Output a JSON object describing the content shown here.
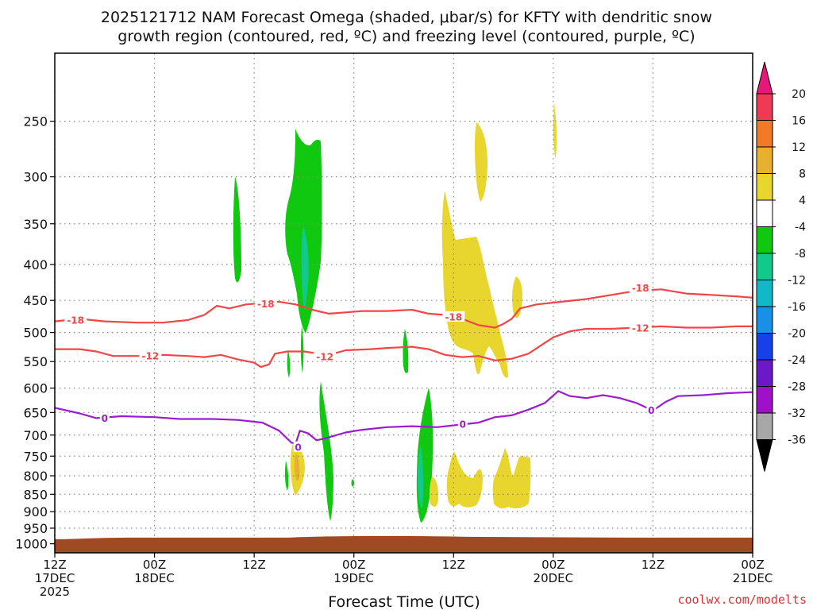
{
  "title_line1": "2025121712 NAM Forecast Omega (shaded, μbar/s) for KFTY with dendritic snow",
  "title_line2": "growth region (contoured, red, ºC) and freezing level (contoured, purple, ºC)",
  "credit": "coolwx.com/modelts",
  "chart_data": {
    "type": "time-height cross-section",
    "xlabel": "Forecast Time (UTC)",
    "ylabel": "",
    "x_ticks": [
      {
        "hour": 0,
        "lines": [
          "12Z",
          "17DEC",
          "2025"
        ]
      },
      {
        "hour": 12,
        "lines": [
          "00Z",
          "18DEC"
        ]
      },
      {
        "hour": 24,
        "lines": [
          "12Z"
        ]
      },
      {
        "hour": 36,
        "lines": [
          "00Z",
          "19DEC"
        ]
      },
      {
        "hour": 48,
        "lines": [
          "12Z"
        ]
      },
      {
        "hour": 60,
        "lines": [
          "00Z",
          "20DEC"
        ]
      },
      {
        "hour": 72,
        "lines": [
          "12Z"
        ]
      },
      {
        "hour": 84,
        "lines": [
          "00Z",
          "21DEC"
        ]
      }
    ],
    "x_range_hours": [
      0,
      84
    ],
    "y_ticks": [
      250,
      300,
      350,
      400,
      450,
      500,
      550,
      600,
      650,
      700,
      750,
      800,
      850,
      900,
      950,
      1000
    ],
    "y_range_hpa": [
      200,
      1030
    ],
    "y_scale": "log-pressure",
    "grid": true,
    "ground_surface_hpa": 980,
    "colorbar": {
      "labels": [
        "20",
        "16",
        "12",
        "8",
        "4",
        "-4",
        "-8",
        "-12",
        "-16",
        "-20",
        "-24",
        "-28",
        "-32",
        "-36"
      ],
      "colors": [
        "#ee3a52",
        "#f07a28",
        "#e8b030",
        "#e8d62e",
        "#ffffff",
        "#10c810",
        "#12c88a",
        "#10b8c8",
        "#1890e8",
        "#1840e8",
        "#6a18c8",
        "#a010c8",
        "#a8a8a8"
      ],
      "top_arrow_color": "#e8187a",
      "bottom_arrow_color": "#000000"
    },
    "contours": [
      {
        "label": "-18",
        "color": "#f04646",
        "label_positions": [
          [
            2.5,
            480
          ],
          [
            25.4,
            455
          ],
          [
            48.0,
            475
          ],
          [
            70.5,
            432
          ]
        ],
        "points": [
          [
            0,
            482
          ],
          [
            3,
            478
          ],
          [
            6,
            482
          ],
          [
            10,
            484
          ],
          [
            13,
            484
          ],
          [
            16,
            480
          ],
          [
            18,
            472
          ],
          [
            19.5,
            458
          ],
          [
            21,
            462
          ],
          [
            23,
            456
          ],
          [
            25,
            454
          ],
          [
            27,
            452
          ],
          [
            29,
            456
          ],
          [
            31,
            464
          ],
          [
            33,
            470
          ],
          [
            35,
            468
          ],
          [
            37,
            466
          ],
          [
            40,
            466
          ],
          [
            43,
            464
          ],
          [
            45,
            470
          ],
          [
            47,
            472
          ],
          [
            49,
            478
          ],
          [
            51,
            488
          ],
          [
            53,
            492
          ],
          [
            54,
            486
          ],
          [
            55,
            478
          ],
          [
            56,
            462
          ],
          [
            58,
            456
          ],
          [
            61,
            452
          ],
          [
            64,
            448
          ],
          [
            67,
            442
          ],
          [
            70,
            436
          ],
          [
            73,
            434
          ],
          [
            76,
            440
          ],
          [
            79,
            442
          ],
          [
            82,
            444
          ],
          [
            84,
            446
          ]
        ]
      },
      {
        "label": "-12",
        "color": "#f04646",
        "label_positions": [
          [
            11.5,
            540
          ],
          [
            32.5,
            541
          ],
          [
            70.5,
            493
          ]
        ],
        "points": [
          [
            0,
            528
          ],
          [
            3,
            528
          ],
          [
            5,
            532
          ],
          [
            7,
            540
          ],
          [
            10,
            540
          ],
          [
            13,
            538
          ],
          [
            16,
            540
          ],
          [
            18,
            542
          ],
          [
            20,
            538
          ],
          [
            22,
            546
          ],
          [
            24,
            552
          ],
          [
            24.8,
            560
          ],
          [
            25.8,
            555
          ],
          [
            26.5,
            536
          ],
          [
            28,
            532
          ],
          [
            30,
            532
          ],
          [
            31.8,
            536
          ],
          [
            32.5,
            540
          ],
          [
            33.3,
            537
          ],
          [
            35,
            530
          ],
          [
            38,
            528
          ],
          [
            40,
            526
          ],
          [
            43,
            524
          ],
          [
            45,
            528
          ],
          [
            47,
            538
          ],
          [
            49,
            542
          ],
          [
            51,
            540
          ],
          [
            53,
            548
          ],
          [
            55,
            545
          ],
          [
            57,
            536
          ],
          [
            60,
            508
          ],
          [
            62,
            498
          ],
          [
            64,
            494
          ],
          [
            67,
            494
          ],
          [
            70,
            492
          ],
          [
            73,
            490
          ],
          [
            76,
            492
          ],
          [
            79,
            492
          ],
          [
            82,
            490
          ],
          [
            84,
            490
          ]
        ]
      },
      {
        "label": "0",
        "color": "#9b1ccf",
        "label_positions": [
          [
            6,
            662
          ],
          [
            29.3,
            728
          ],
          [
            49.1,
            675
          ],
          [
            71.8,
            645
          ]
        ],
        "points": [
          [
            0,
            640
          ],
          [
            3,
            652
          ],
          [
            5,
            662
          ],
          [
            8,
            658
          ],
          [
            12,
            660
          ],
          [
            15,
            664
          ],
          [
            19,
            664
          ],
          [
            22,
            666
          ],
          [
            25,
            672
          ],
          [
            27,
            690
          ],
          [
            28.5,
            718
          ],
          [
            29,
            719
          ],
          [
            29.5,
            690
          ],
          [
            30.5,
            696
          ],
          [
            31.5,
            712
          ],
          [
            32.5,
            708
          ],
          [
            35,
            694
          ],
          [
            37,
            688
          ],
          [
            40,
            682
          ],
          [
            43,
            680
          ],
          [
            46,
            682
          ],
          [
            49,
            676
          ],
          [
            51,
            672
          ],
          [
            53,
            660
          ],
          [
            55,
            656
          ],
          [
            57,
            644
          ],
          [
            59,
            630
          ],
          [
            60.6,
            606
          ],
          [
            62,
            616
          ],
          [
            64,
            620
          ],
          [
            66,
            614
          ],
          [
            68,
            620
          ],
          [
            70,
            630
          ],
          [
            72,
            646
          ],
          [
            73.5,
            628
          ],
          [
            75,
            616
          ],
          [
            78,
            614
          ],
          [
            81,
            610
          ],
          [
            84,
            608
          ]
        ]
      }
    ]
  }
}
